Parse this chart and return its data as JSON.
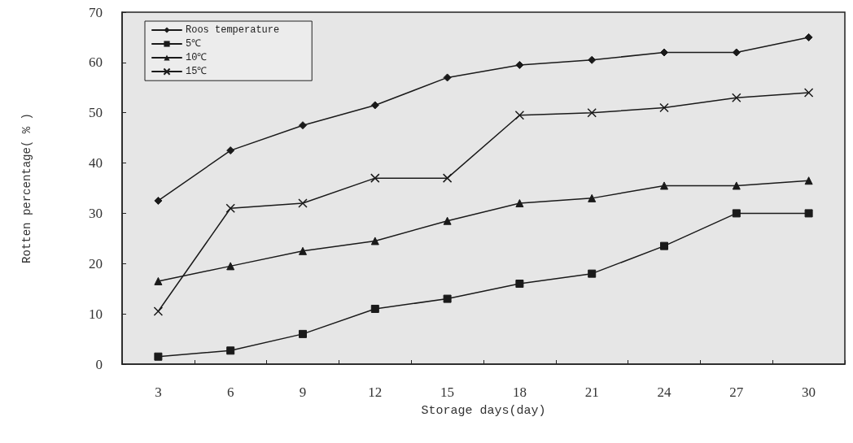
{
  "chart_data": {
    "type": "line",
    "xlabel": "Storage days(day)",
    "ylabel": "Rotten percentage( % )",
    "categories": [
      "3",
      "6",
      "9",
      "12",
      "15",
      "18",
      "21",
      "24",
      "27",
      "30"
    ],
    "ylim": [
      0,
      70
    ],
    "yticks": [
      0,
      10,
      20,
      30,
      40,
      50,
      60,
      70
    ],
    "grid": false,
    "legend": "top left",
    "line_style": "solid",
    "series": [
      {
        "name": "Roos temperature",
        "color": "#1a1a1a",
        "marker": "diamond",
        "values": [
          32.5,
          42.5,
          47.5,
          51.5,
          57,
          59.5,
          60.5,
          62,
          62,
          65
        ]
      },
      {
        "name": "5℃",
        "color": "#1a1a1a",
        "marker": "square",
        "values": [
          1.5,
          2.7,
          6,
          11,
          13,
          16,
          18,
          23.5,
          30,
          30
        ]
      },
      {
        "name": "10℃",
        "color": "#1a1a1a",
        "marker": "triangle",
        "values": [
          16.5,
          19.5,
          22.5,
          24.5,
          28.5,
          32,
          33,
          35.5,
          35.5,
          36.5
        ]
      },
      {
        "name": "15℃",
        "color": "#1a1a1a",
        "marker": "cross",
        "values": [
          10.5,
          31,
          32,
          37,
          37,
          49.5,
          50,
          51,
          53,
          54
        ]
      }
    ]
  }
}
